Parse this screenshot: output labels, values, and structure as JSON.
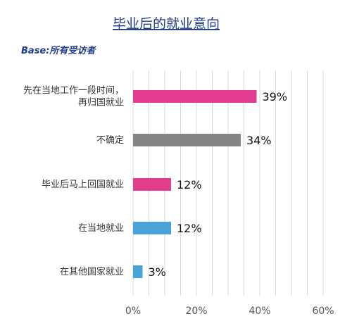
{
  "chart_data": {
    "type": "bar",
    "orientation": "horizontal",
    "title": "毕业后的就业意向",
    "subtitle": "Base:所有受访者",
    "categories": [
      [
        "先在当地工作一段时间，",
        "再归国就业"
      ],
      [
        "不确定"
      ],
      [
        "毕业后马上回国就业"
      ],
      [
        "在当地就业"
      ],
      [
        "在其他国家就业"
      ]
    ],
    "values": [
      39,
      34,
      12,
      12,
      3
    ],
    "value_labels": [
      "39%",
      "34%",
      "12%",
      "12%",
      "3%"
    ],
    "bar_colors": [
      "#e23c8e",
      "#858585",
      "#e23c8e",
      "#4aa3d8",
      "#4aa3d8"
    ],
    "xlim": [
      0,
      60
    ],
    "xticks": [
      0,
      20,
      40,
      60
    ],
    "xtick_labels": [
      "0%",
      "20%",
      "40%",
      "60%"
    ],
    "grid": true
  }
}
